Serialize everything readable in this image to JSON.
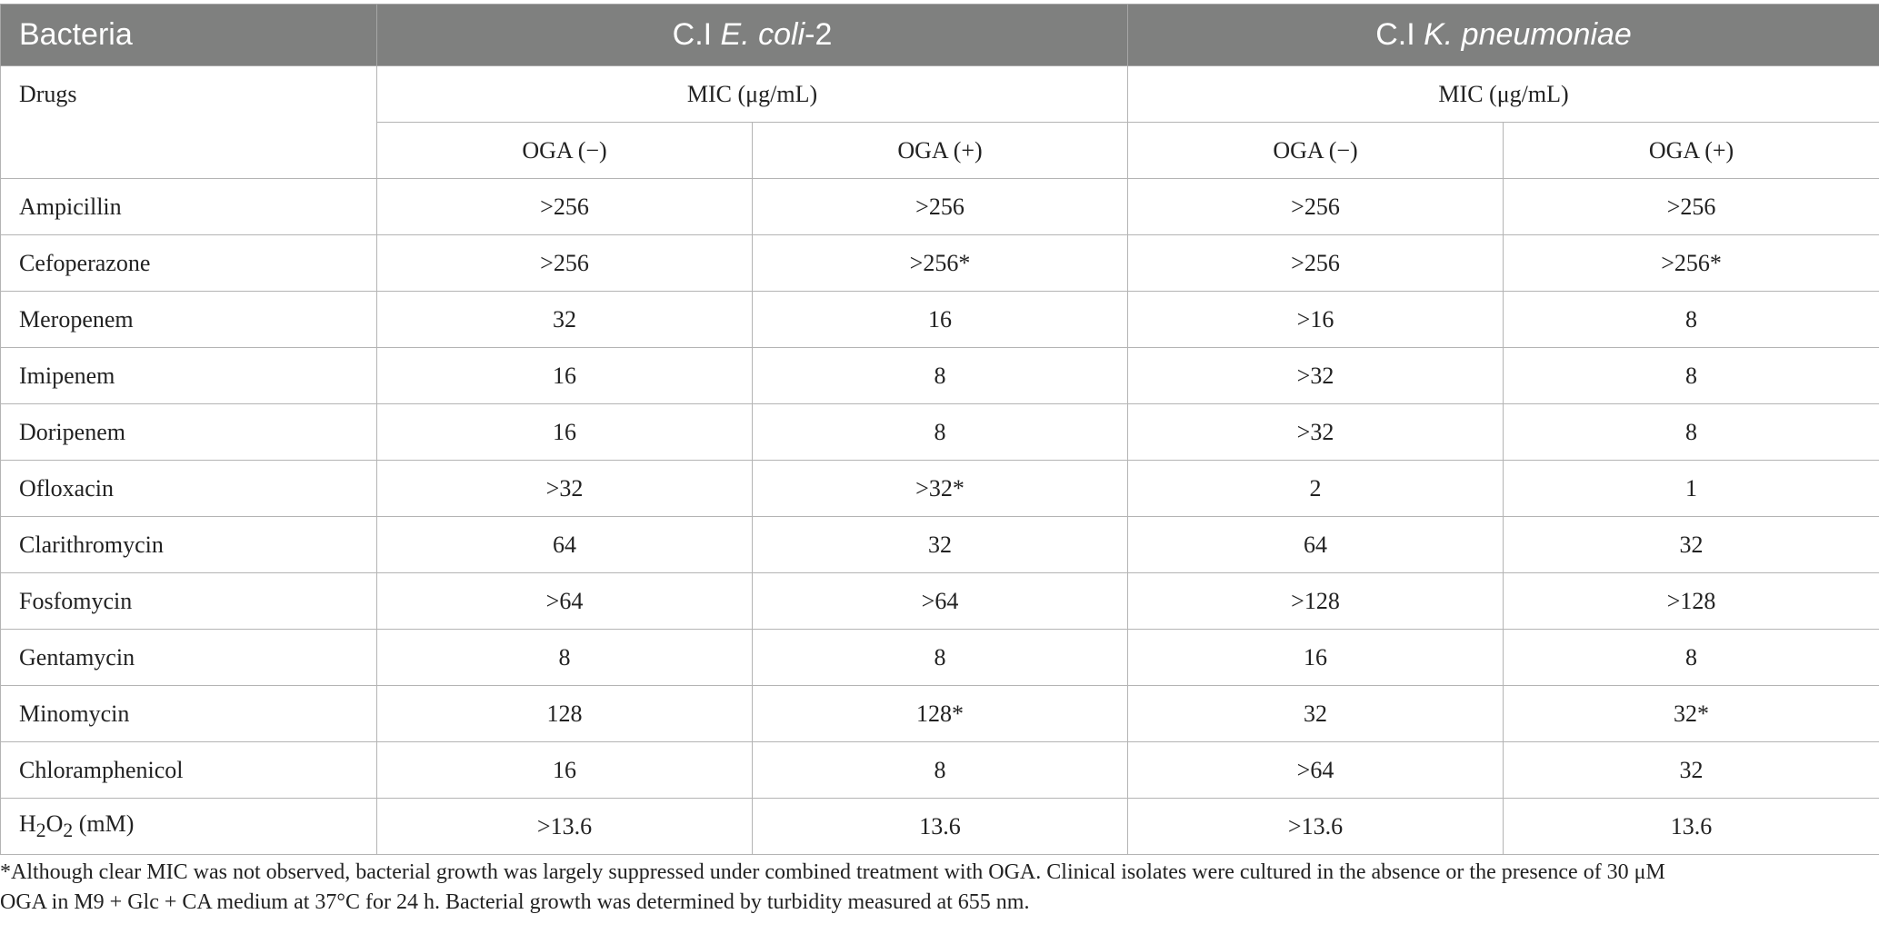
{
  "table": {
    "header": {
      "col0": "Bacteria",
      "ecoli_prefix": "C.I ",
      "ecoli_italic": "E. coli",
      "ecoli_suffix": "-2",
      "kpn_prefix": "C.I ",
      "kpn_italic": "K. pneumoniae"
    },
    "subheader": {
      "drugs_label": "Drugs",
      "mic_ecoli": "MIC (μg/mL)",
      "mic_kpn": "MIC (μg/mL)",
      "oga_minus": "OGA (−)",
      "oga_plus": "OGA (+)"
    },
    "rows": [
      {
        "drug": "Ampicillin",
        "ecoli_minus": ">256",
        "ecoli_plus": ">256",
        "kpn_minus": ">256",
        "kpn_plus": ">256"
      },
      {
        "drug": "Cefoperazone",
        "ecoli_minus": ">256",
        "ecoli_plus": ">256*",
        "kpn_minus": ">256",
        "kpn_plus": ">256*"
      },
      {
        "drug": "Meropenem",
        "ecoli_minus": "32",
        "ecoli_plus": "16",
        "kpn_minus": ">16",
        "kpn_plus": "8"
      },
      {
        "drug": "Imipenem",
        "ecoli_minus": "16",
        "ecoli_plus": "8",
        "kpn_minus": ">32",
        "kpn_plus": "8"
      },
      {
        "drug": "Doripenem",
        "ecoli_minus": "16",
        "ecoli_plus": "8",
        "kpn_minus": ">32",
        "kpn_plus": "8"
      },
      {
        "drug": "Ofloxacin",
        "ecoli_minus": ">32",
        "ecoli_plus": ">32*",
        "kpn_minus": "2",
        "kpn_plus": "1"
      },
      {
        "drug": "Clarithromycin",
        "ecoli_minus": "64",
        "ecoli_plus": "32",
        "kpn_minus": "64",
        "kpn_plus": "32"
      },
      {
        "drug": "Fosfomycin",
        "ecoli_minus": ">64",
        "ecoli_plus": ">64",
        "kpn_minus": ">128",
        "kpn_plus": ">128"
      },
      {
        "drug": "Gentamycin",
        "ecoli_minus": "8",
        "ecoli_plus": "8",
        "kpn_minus": "16",
        "kpn_plus": "8"
      },
      {
        "drug": "Minomycin",
        "ecoli_minus": "128",
        "ecoli_plus": "128*",
        "kpn_minus": "32",
        "kpn_plus": "32*"
      },
      {
        "drug": "Chloramphenicol",
        "ecoli_minus": "16",
        "ecoli_plus": "8",
        "kpn_minus": ">64",
        "kpn_plus": "32"
      }
    ],
    "h2o2_row": {
      "drug_prefix": "H",
      "drug_sub1": "2",
      "drug_mid": "O",
      "drug_sub2": "2",
      "drug_suffix": " (mM)",
      "ecoli_minus": ">13.6",
      "ecoli_plus": "13.6",
      "kpn_minus": ">13.6",
      "kpn_plus": "13.6"
    }
  },
  "footnote": {
    "line1": "*Although clear MIC was not observed, bacterial growth was largely suppressed under combined treatment with OGA. Clinical isolates were cultured in the absence or the presence of 30 μM",
    "line2": "OGA in M9 + Glc + CA medium at 37°C for 24 h. Bacterial growth was determined by turbidity measured at 655 nm."
  },
  "colors": {
    "header_bg": "#7f807f",
    "header_text": "#ffffff",
    "border": "#b4b4b4",
    "text": "#222222"
  }
}
